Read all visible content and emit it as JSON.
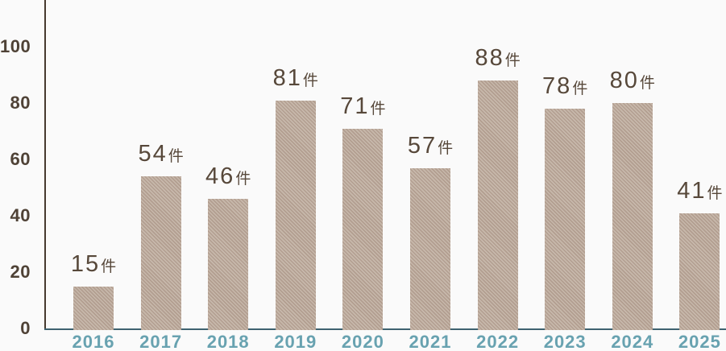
{
  "chart_data": {
    "type": "bar",
    "title": "",
    "xlabel": "",
    "ylabel": "",
    "categories": [
      "2016",
      "2017",
      "2018",
      "2019",
      "2020",
      "2021",
      "2022",
      "2023",
      "2024",
      "2025"
    ],
    "values": [
      15,
      54,
      46,
      81,
      71,
      57,
      88,
      78,
      80,
      41
    ],
    "value_suffix": "件",
    "value_labels": [
      "15件",
      "54件",
      "46件",
      "81件",
      "71件",
      "57件",
      "88件",
      "78件",
      "80件",
      "41件"
    ],
    "y_ticks": [
      0,
      20,
      40,
      60,
      80,
      100
    ],
    "ylim": [
      0,
      100
    ],
    "grid": false,
    "legend": false,
    "bar_texture": "diagonal-stripes"
  },
  "colors": {
    "background": "#fafafa",
    "bar_fill_dark": "#b29e90",
    "bar_fill_light": "#c7b8ab",
    "y_axis_line": "#46392e",
    "x_axis_line": "#3e6270",
    "y_tick_label": "#4f4236",
    "x_tick_label": "#68a2b0",
    "value_label": "#57483a"
  }
}
